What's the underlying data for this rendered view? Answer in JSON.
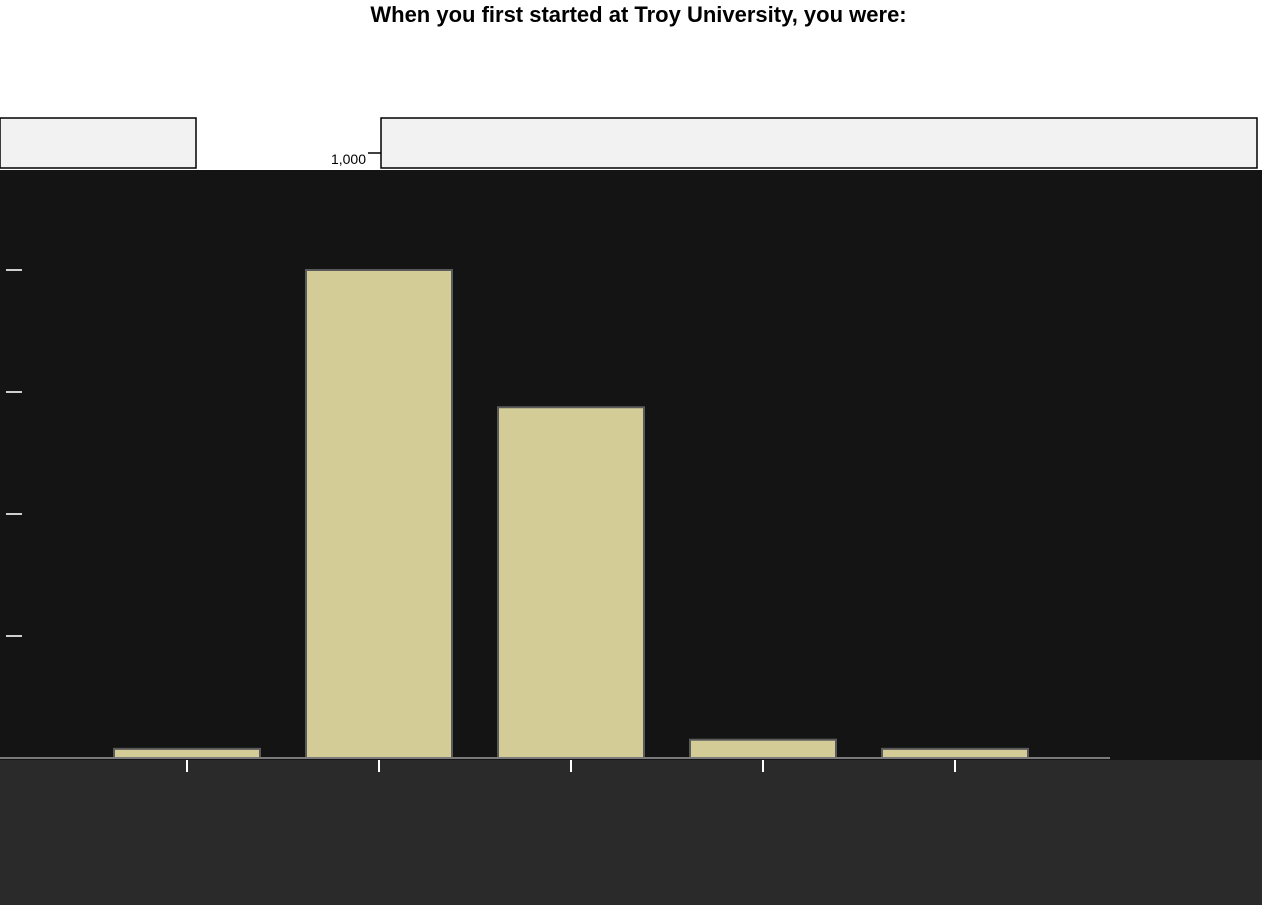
{
  "page_title": "When you first started at Troy University, you were:",
  "top_tick_label": "1,000",
  "chart_data": {
    "type": "bar",
    "title": "When you first started at Troy University, you were:",
    "categories": [
      "",
      "",
      "",
      "",
      ""
    ],
    "values": [
      15,
      800,
      575,
      30,
      15
    ],
    "ylim": [
      0,
      1000
    ],
    "xlabel": "",
    "ylabel": "",
    "grid": false
  },
  "colors": {
    "bar_fill": "#d3cc96",
    "bar_stroke": "#5a5a5a",
    "plot_background": "#141414",
    "category_band": "#2a2a2a",
    "panel": "#f2f2f2"
  }
}
